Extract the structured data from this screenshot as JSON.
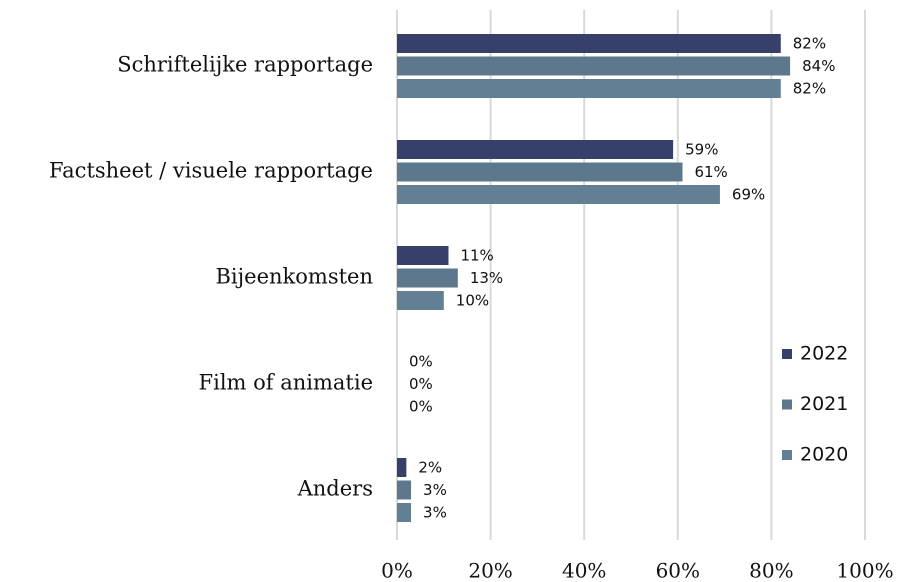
{
  "chart_data": {
    "type": "bar",
    "orientation": "horizontal",
    "categories": [
      "Schriftelijke rapportage",
      "Factsheet / visuele rapportage",
      "Bijeenkomsten",
      "Film of animatie",
      "Anders"
    ],
    "series": [
      {
        "name": "2022",
        "color": "#373f6b",
        "values": [
          82,
          59,
          11,
          0,
          2
        ],
        "value_labels": [
          "82%",
          "59%",
          "11%",
          "0%",
          "2%"
        ]
      },
      {
        "name": "2021",
        "color": "#5d788d",
        "values": [
          84,
          61,
          13,
          0,
          3
        ],
        "value_labels": [
          "84%",
          "61%",
          "13%",
          "0%",
          "3%"
        ]
      },
      {
        "name": "2020",
        "color": "#637f94",
        "values": [
          82,
          69,
          10,
          0,
          3
        ],
        "value_labels": [
          "82%",
          "69%",
          "10%",
          "0%",
          "3%"
        ]
      }
    ],
    "xlim": [
      0,
      100
    ],
    "xticks": [
      {
        "value": 0,
        "label": "0%"
      },
      {
        "value": 20,
        "label": "20%"
      },
      {
        "value": 40,
        "label": "40%"
      },
      {
        "value": 60,
        "label": "60%"
      },
      {
        "value": 80,
        "label": "80%"
      },
      {
        "value": 100,
        "label": "100%"
      }
    ],
    "grid": true,
    "legend": "right"
  }
}
